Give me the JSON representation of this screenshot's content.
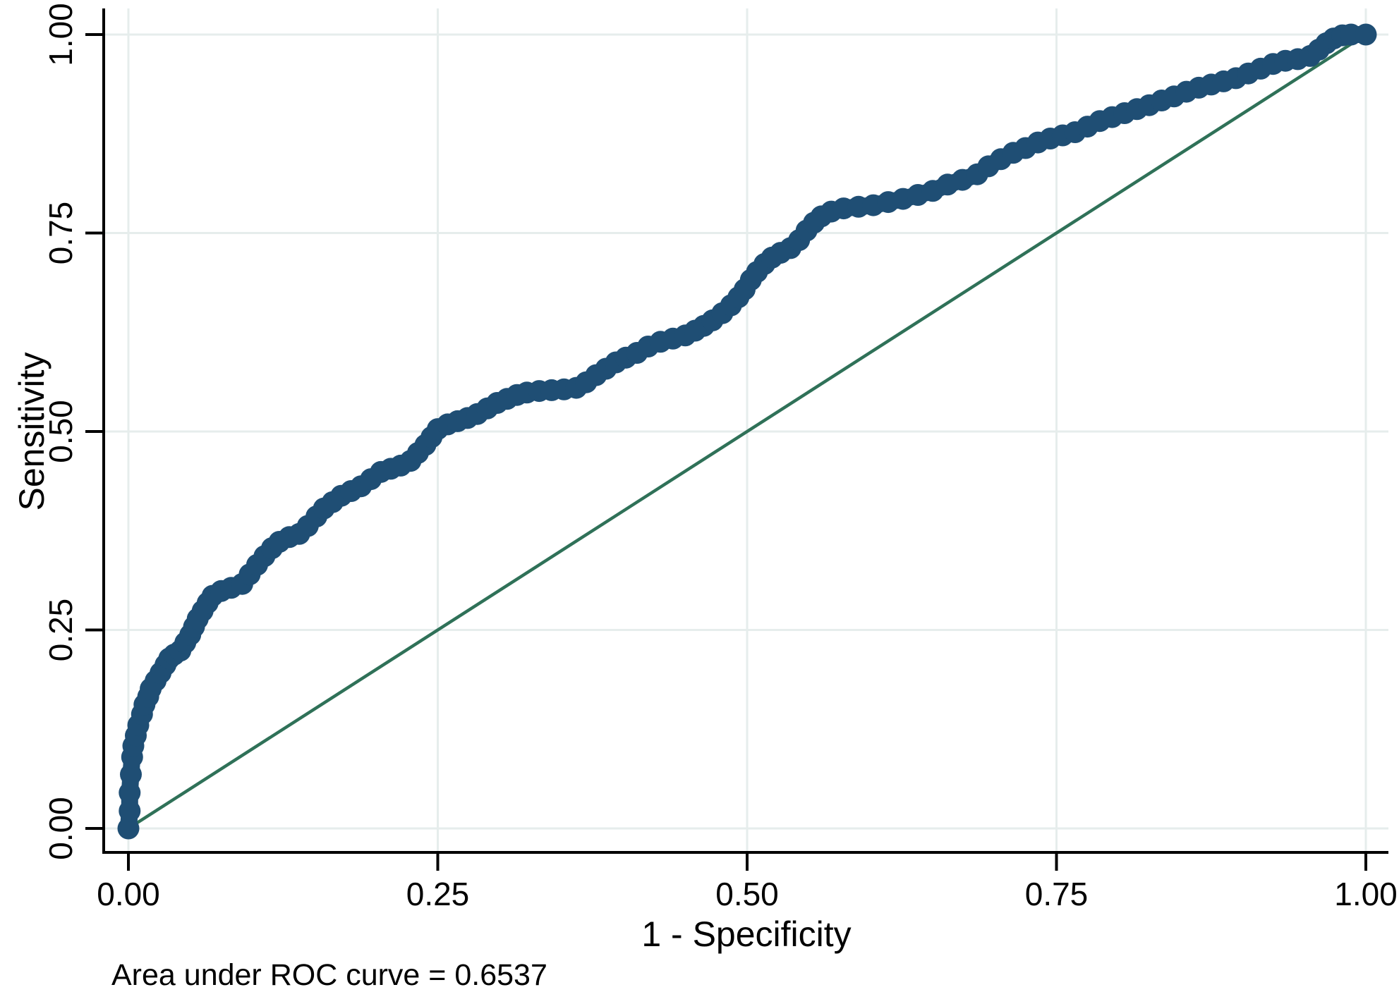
{
  "chart_data": {
    "type": "line",
    "title": "",
    "xlabel": "1 - Specificity",
    "ylabel": "Sensitivity",
    "annotation": "Area under ROC curve = 0.6537",
    "auc": 0.6537,
    "xlim": [
      0,
      1
    ],
    "ylim": [
      0,
      1
    ],
    "grid": true,
    "legend": "none",
    "x_ticks": [
      "0.00",
      "0.25",
      "0.50",
      "0.75",
      "1.00"
    ],
    "y_ticks": [
      "0.00",
      "0.25",
      "0.50",
      "0.75",
      "1.00"
    ],
    "x_tick_values": [
      0,
      0.25,
      0.5,
      0.75,
      1
    ],
    "y_tick_values": [
      0,
      0.25,
      0.5,
      0.75,
      1
    ],
    "colors": {
      "roc": "#1F4E74",
      "reference": "#2F7158",
      "grid": "#E6EDEC",
      "axis": "#000000",
      "background": "#FFFFFF"
    },
    "series": [
      {
        "name": "ROC curve",
        "style": "line-with-markers",
        "color": "#1F4E74",
        "points": [
          [
            0,
            0
          ],
          [
            0.001,
            0.022
          ],
          [
            0.001,
            0.045
          ],
          [
            0.002,
            0.068
          ],
          [
            0.003,
            0.09
          ],
          [
            0.004,
            0.104
          ],
          [
            0.006,
            0.117
          ],
          [
            0.008,
            0.13
          ],
          [
            0.011,
            0.144
          ],
          [
            0.013,
            0.156
          ],
          [
            0.016,
            0.166
          ],
          [
            0.018,
            0.176
          ],
          [
            0.022,
            0.186
          ],
          [
            0.026,
            0.196
          ],
          [
            0.03,
            0.206
          ],
          [
            0.033,
            0.214
          ],
          [
            0.037,
            0.219
          ],
          [
            0.042,
            0.224
          ],
          [
            0.046,
            0.234
          ],
          [
            0.05,
            0.244
          ],
          [
            0.053,
            0.254
          ],
          [
            0.056,
            0.264
          ],
          [
            0.06,
            0.274
          ],
          [
            0.064,
            0.284
          ],
          [
            0.068,
            0.293
          ],
          [
            0.075,
            0.299
          ],
          [
            0.083,
            0.303
          ],
          [
            0.092,
            0.308
          ],
          [
            0.098,
            0.32
          ],
          [
            0.104,
            0.332
          ],
          [
            0.11,
            0.343
          ],
          [
            0.116,
            0.353
          ],
          [
            0.122,
            0.361
          ],
          [
            0.13,
            0.367
          ],
          [
            0.138,
            0.371
          ],
          [
            0.145,
            0.381
          ],
          [
            0.152,
            0.393
          ],
          [
            0.158,
            0.403
          ],
          [
            0.165,
            0.411
          ],
          [
            0.172,
            0.419
          ],
          [
            0.18,
            0.425
          ],
          [
            0.188,
            0.431
          ],
          [
            0.196,
            0.44
          ],
          [
            0.204,
            0.449
          ],
          [
            0.212,
            0.453
          ],
          [
            0.22,
            0.457
          ],
          [
            0.228,
            0.463
          ],
          [
            0.234,
            0.473
          ],
          [
            0.24,
            0.483
          ],
          [
            0.245,
            0.493
          ],
          [
            0.25,
            0.503
          ],
          [
            0.258,
            0.509
          ],
          [
            0.266,
            0.513
          ],
          [
            0.274,
            0.517
          ],
          [
            0.282,
            0.522
          ],
          [
            0.29,
            0.529
          ],
          [
            0.298,
            0.536
          ],
          [
            0.306,
            0.541
          ],
          [
            0.314,
            0.546
          ],
          [
            0.322,
            0.549
          ],
          [
            0.332,
            0.551
          ],
          [
            0.342,
            0.552
          ],
          [
            0.352,
            0.553
          ],
          [
            0.362,
            0.555
          ],
          [
            0.37,
            0.562
          ],
          [
            0.378,
            0.571
          ],
          [
            0.386,
            0.579
          ],
          [
            0.394,
            0.587
          ],
          [
            0.402,
            0.593
          ],
          [
            0.411,
            0.599
          ],
          [
            0.42,
            0.607
          ],
          [
            0.43,
            0.613
          ],
          [
            0.44,
            0.617
          ],
          [
            0.45,
            0.621
          ],
          [
            0.458,
            0.627
          ],
          [
            0.465,
            0.633
          ],
          [
            0.472,
            0.64
          ],
          [
            0.48,
            0.649
          ],
          [
            0.487,
            0.659
          ],
          [
            0.493,
            0.669
          ],
          [
            0.498,
            0.679
          ],
          [
            0.503,
            0.691
          ],
          [
            0.508,
            0.701
          ],
          [
            0.514,
            0.711
          ],
          [
            0.52,
            0.719
          ],
          [
            0.527,
            0.725
          ],
          [
            0.535,
            0.731
          ],
          [
            0.542,
            0.741
          ],
          [
            0.548,
            0.753
          ],
          [
            0.554,
            0.763
          ],
          [
            0.56,
            0.771
          ],
          [
            0.568,
            0.777
          ],
          [
            0.578,
            0.781
          ],
          [
            0.59,
            0.783
          ],
          [
            0.602,
            0.785
          ],
          [
            0.614,
            0.789
          ],
          [
            0.626,
            0.793
          ],
          [
            0.638,
            0.798
          ],
          [
            0.65,
            0.803
          ],
          [
            0.662,
            0.811
          ],
          [
            0.674,
            0.817
          ],
          [
            0.686,
            0.824
          ],
          [
            0.695,
            0.834
          ],
          [
            0.705,
            0.843
          ],
          [
            0.715,
            0.851
          ],
          [
            0.725,
            0.857
          ],
          [
            0.735,
            0.864
          ],
          [
            0.745,
            0.869
          ],
          [
            0.755,
            0.873
          ],
          [
            0.765,
            0.877
          ],
          [
            0.775,
            0.884
          ],
          [
            0.785,
            0.891
          ],
          [
            0.795,
            0.896
          ],
          [
            0.805,
            0.901
          ],
          [
            0.815,
            0.906
          ],
          [
            0.825,
            0.911
          ],
          [
            0.835,
            0.917
          ],
          [
            0.845,
            0.922
          ],
          [
            0.855,
            0.928
          ],
          [
            0.865,
            0.933
          ],
          [
            0.875,
            0.937
          ],
          [
            0.885,
            0.941
          ],
          [
            0.895,
            0.945
          ],
          [
            0.905,
            0.951
          ],
          [
            0.915,
            0.957
          ],
          [
            0.925,
            0.963
          ],
          [
            0.935,
            0.967
          ],
          [
            0.945,
            0.969
          ],
          [
            0.955,
            0.973
          ],
          [
            0.962,
            0.981
          ],
          [
            0.968,
            0.989
          ],
          [
            0.974,
            0.995
          ],
          [
            0.981,
            0.999
          ],
          [
            0.988,
            1
          ],
          [
            1,
            1
          ]
        ]
      },
      {
        "name": "Reference diagonal",
        "style": "line",
        "color": "#2F7158",
        "points": [
          [
            0,
            0
          ],
          [
            1,
            1
          ]
        ]
      }
    ]
  }
}
